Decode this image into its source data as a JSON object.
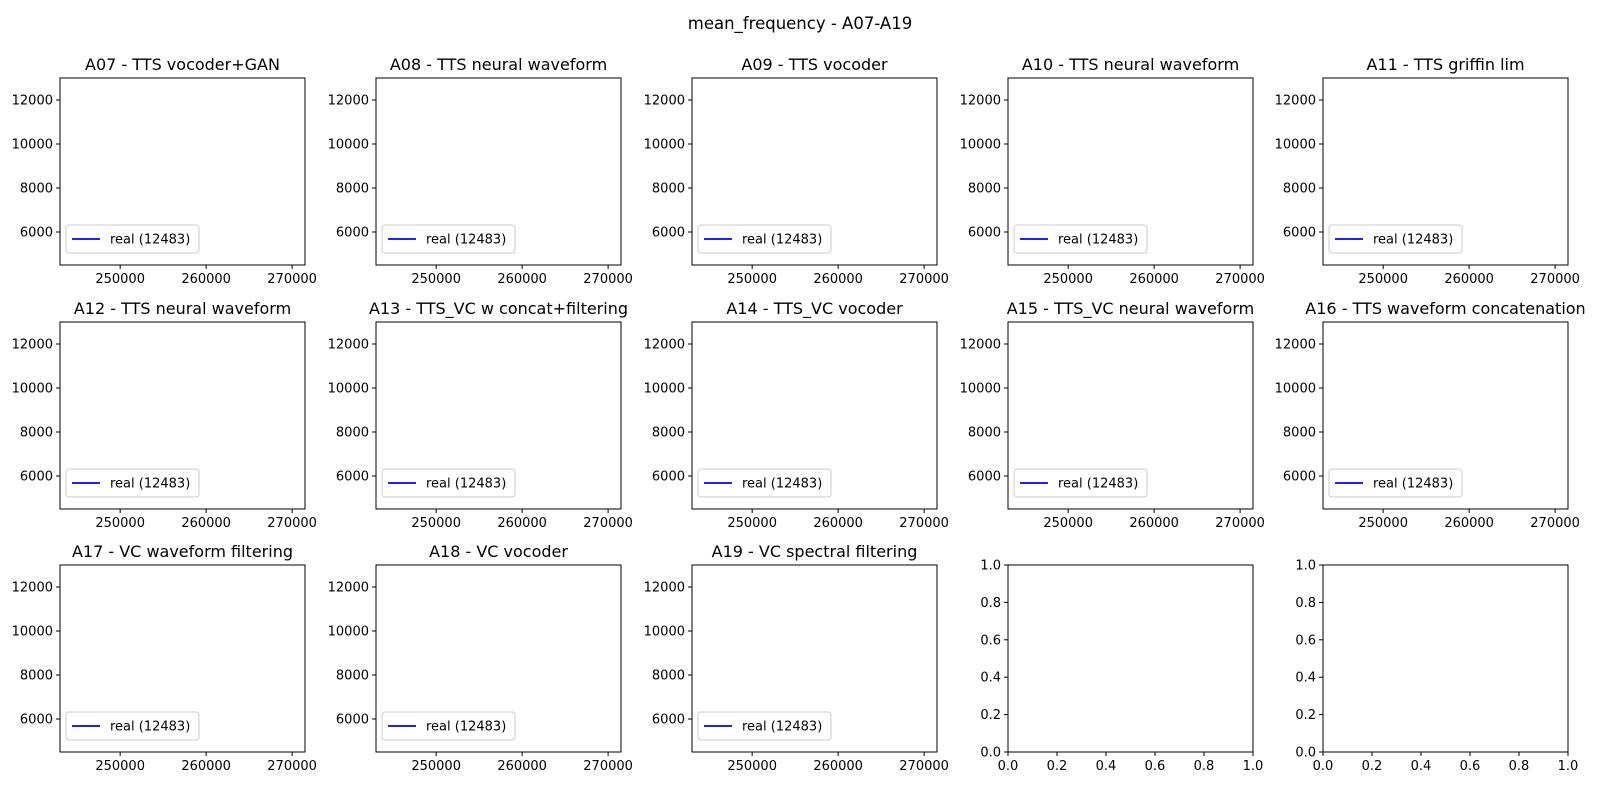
{
  "figure": {
    "suptitle": "mean_frequency - A07-A19",
    "background": "#ffffff",
    "line_color": "#0000ff"
  },
  "chart_data": [
    {
      "type": "line",
      "title": "A07 - TTS vocoder+GAN",
      "series": [
        {
          "name": "real (12483)",
          "x": [],
          "y": []
        }
      ],
      "xticks": [
        250000,
        260000,
        270000
      ],
      "yticks": [
        6000,
        8000,
        10000,
        12000
      ],
      "xlim": [
        243000,
        271500
      ],
      "ylim": [
        4500,
        13000
      ],
      "legend": "lower left",
      "grid": false
    },
    {
      "type": "line",
      "title": "A08 - TTS neural waveform",
      "series": [
        {
          "name": "real (12483)",
          "x": [],
          "y": []
        }
      ],
      "xticks": [
        250000,
        260000,
        270000
      ],
      "yticks": [
        6000,
        8000,
        10000,
        12000
      ],
      "xlim": [
        243000,
        271500
      ],
      "ylim": [
        4500,
        13000
      ],
      "legend": "lower left",
      "grid": false
    },
    {
      "type": "line",
      "title": "A09 - TTS vocoder",
      "series": [
        {
          "name": "real (12483)",
          "x": [],
          "y": []
        }
      ],
      "xticks": [
        250000,
        260000,
        270000
      ],
      "yticks": [
        6000,
        8000,
        10000,
        12000
      ],
      "xlim": [
        243000,
        271500
      ],
      "ylim": [
        4500,
        13000
      ],
      "legend": "lower left",
      "grid": false
    },
    {
      "type": "line",
      "title": "A10 - TTS neural waveform",
      "series": [
        {
          "name": "real (12483)",
          "x": [],
          "y": []
        }
      ],
      "xticks": [
        250000,
        260000,
        270000
      ],
      "yticks": [
        6000,
        8000,
        10000,
        12000
      ],
      "xlim": [
        243000,
        271500
      ],
      "ylim": [
        4500,
        13000
      ],
      "legend": "lower left",
      "grid": false
    },
    {
      "type": "line",
      "title": "A11 - TTS griffin lim",
      "series": [
        {
          "name": "real (12483)",
          "x": [],
          "y": []
        }
      ],
      "xticks": [
        250000,
        260000,
        270000
      ],
      "yticks": [
        6000,
        8000,
        10000,
        12000
      ],
      "xlim": [
        243000,
        271500
      ],
      "ylim": [
        4500,
        13000
      ],
      "legend": "lower left",
      "grid": false
    },
    {
      "type": "line",
      "title": "A12 - TTS neural waveform",
      "series": [
        {
          "name": "real (12483)",
          "x": [],
          "y": []
        }
      ],
      "xticks": [
        250000,
        260000,
        270000
      ],
      "yticks": [
        6000,
        8000,
        10000,
        12000
      ],
      "xlim": [
        243000,
        271500
      ],
      "ylim": [
        4500,
        13000
      ],
      "legend": "lower left",
      "grid": false
    },
    {
      "type": "line",
      "title": "A13 - TTS_VC w concat+filtering",
      "series": [
        {
          "name": "real (12483)",
          "x": [],
          "y": []
        }
      ],
      "xticks": [
        250000,
        260000,
        270000
      ],
      "yticks": [
        6000,
        8000,
        10000,
        12000
      ],
      "xlim": [
        243000,
        271500
      ],
      "ylim": [
        4500,
        13000
      ],
      "legend": "lower left",
      "grid": false
    },
    {
      "type": "line",
      "title": "A14 - TTS_VC vocoder",
      "series": [
        {
          "name": "real (12483)",
          "x": [],
          "y": []
        }
      ],
      "xticks": [
        250000,
        260000,
        270000
      ],
      "yticks": [
        6000,
        8000,
        10000,
        12000
      ],
      "xlim": [
        243000,
        271500
      ],
      "ylim": [
        4500,
        13000
      ],
      "legend": "lower left",
      "grid": false
    },
    {
      "type": "line",
      "title": "A15 - TTS_VC neural waveform",
      "series": [
        {
          "name": "real (12483)",
          "x": [],
          "y": []
        }
      ],
      "xticks": [
        250000,
        260000,
        270000
      ],
      "yticks": [
        6000,
        8000,
        10000,
        12000
      ],
      "xlim": [
        243000,
        271500
      ],
      "ylim": [
        4500,
        13000
      ],
      "legend": "lower left",
      "grid": false
    },
    {
      "type": "line",
      "title": "A16 - TTS waveform concatenation",
      "series": [
        {
          "name": "real (12483)",
          "x": [],
          "y": []
        }
      ],
      "xticks": [
        250000,
        260000,
        270000
      ],
      "yticks": [
        6000,
        8000,
        10000,
        12000
      ],
      "xlim": [
        243000,
        271500
      ],
      "ylim": [
        4500,
        13000
      ],
      "legend": "lower left",
      "grid": false
    },
    {
      "type": "line",
      "title": "A17 - VC waveform filtering",
      "series": [
        {
          "name": "real (12483)",
          "x": [],
          "y": []
        }
      ],
      "xticks": [
        250000,
        260000,
        270000
      ],
      "yticks": [
        6000,
        8000,
        10000,
        12000
      ],
      "xlim": [
        243000,
        271500
      ],
      "ylim": [
        4500,
        13000
      ],
      "legend": "lower left",
      "grid": false
    },
    {
      "type": "line",
      "title": "A18 - VC vocoder",
      "series": [
        {
          "name": "real (12483)",
          "x": [],
          "y": []
        }
      ],
      "xticks": [
        250000,
        260000,
        270000
      ],
      "yticks": [
        6000,
        8000,
        10000,
        12000
      ],
      "xlim": [
        243000,
        271500
      ],
      "ylim": [
        4500,
        13000
      ],
      "legend": "lower left",
      "grid": false
    },
    {
      "type": "line",
      "title": "A19 - VC spectral filtering",
      "series": [
        {
          "name": "real (12483)",
          "x": [],
          "y": []
        }
      ],
      "xticks": [
        250000,
        260000,
        270000
      ],
      "yticks": [
        6000,
        8000,
        10000,
        12000
      ],
      "xlim": [
        243000,
        271500
      ],
      "ylim": [
        4500,
        13000
      ],
      "legend": "lower left",
      "grid": false
    },
    {
      "type": "line",
      "title": "",
      "series": [],
      "xticks": [
        0.0,
        0.2,
        0.4,
        0.6,
        0.8,
        1.0
      ],
      "yticks": [
        0.0,
        0.2,
        0.4,
        0.6,
        0.8,
        1.0
      ],
      "xlim": [
        0,
        1
      ],
      "ylim": [
        0,
        1
      ],
      "legend": "none",
      "grid": false
    },
    {
      "type": "line",
      "title": "",
      "series": [],
      "xticks": [
        0.0,
        0.2,
        0.4,
        0.6,
        0.8,
        1.0
      ],
      "yticks": [
        0.0,
        0.2,
        0.4,
        0.6,
        0.8,
        1.0
      ],
      "xlim": [
        0,
        1
      ],
      "ylim": [
        0,
        1
      ],
      "legend": "none",
      "grid": false
    }
  ]
}
